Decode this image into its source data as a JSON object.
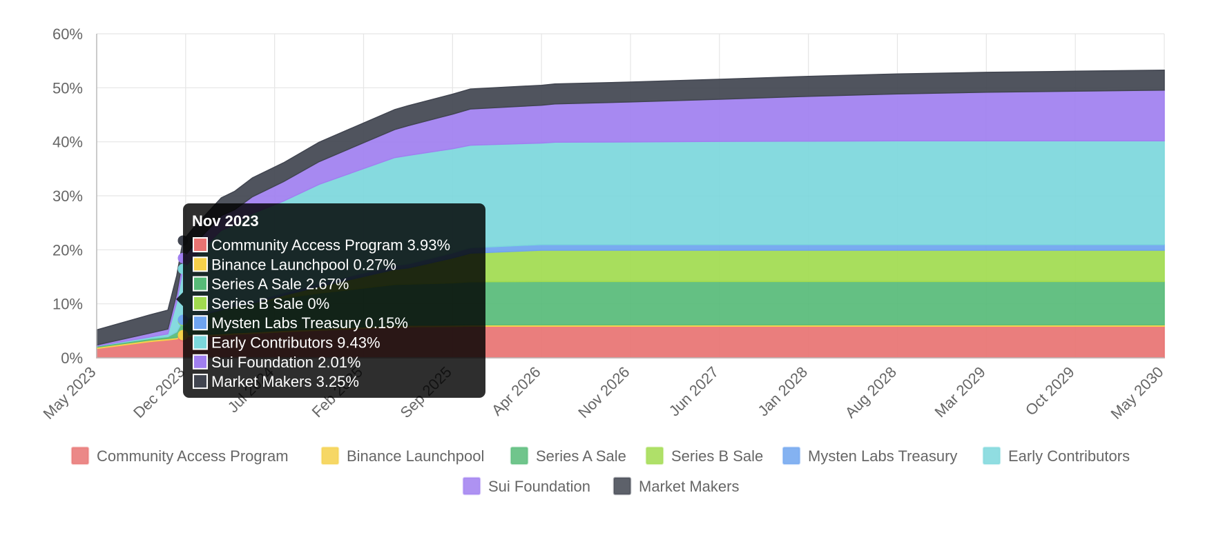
{
  "chart_data": {
    "type": "area",
    "stacked": true,
    "x_labels": [
      "May 2023",
      "Dec 2023",
      "Jul 2024",
      "Feb 2025",
      "Sep 2025",
      "Apr 2026",
      "Nov 2026",
      "Jun 2027",
      "Jan 2028",
      "Aug 2028",
      "Mar 2029",
      "Oct 2029",
      "May 2030"
    ],
    "ylim": [
      0,
      60
    ],
    "yticks": [
      "0%",
      "10%",
      "20%",
      "30%",
      "40%",
      "50%",
      "60%"
    ],
    "ytick_values": [
      0,
      10,
      20,
      30,
      40,
      50,
      60
    ],
    "x_points": [
      0,
      0.6,
      0.8,
      0.9,
      0.97,
      1.1,
      1.4,
      1.55,
      1.75,
      2.1,
      2.5,
      3.35,
      3.5,
      4.0,
      4.2,
      5.0,
      5.15,
      6.0,
      7.0,
      8.0,
      9.0,
      10.0,
      11.0,
      12.0
    ],
    "series": [
      {
        "name": "Community Access Program",
        "color": "#e87372",
        "values": [
          1.7,
          3.0,
          3.3,
          3.5,
          3.93,
          4.0,
          4.2,
          4.35,
          4.5,
          4.8,
          5.1,
          5.7,
          5.75,
          5.8,
          5.85,
          5.85,
          5.85,
          5.85,
          5.85,
          5.85,
          5.85,
          5.85,
          5.85,
          5.85
        ]
      },
      {
        "name": "Binance Launchpool",
        "color": "#f5d04a",
        "values": [
          0.27,
          0.27,
          0.27,
          0.27,
          0.27,
          0.27,
          0.27,
          0.27,
          0.27,
          0.27,
          0.27,
          0.27,
          0.27,
          0.27,
          0.27,
          0.27,
          0.27,
          0.27,
          0.27,
          0.27,
          0.27,
          0.27,
          0.27,
          0.27
        ]
      },
      {
        "name": "Series A Sale",
        "color": "#57bb78",
        "values": [
          0.2,
          0.3,
          0.35,
          1.0,
          2.67,
          3.3,
          4.4,
          5.0,
          5.3,
          6.0,
          6.6,
          7.6,
          7.6,
          7.8,
          7.95,
          8.0,
          8.0,
          8.0,
          8.0,
          8.0,
          8.0,
          8.0,
          8.0,
          8.0
        ]
      },
      {
        "name": "Series B Sale",
        "color": "#a1db4f",
        "values": [
          0,
          0,
          0,
          0,
          0,
          0,
          0,
          0,
          0,
          0.5,
          1.2,
          2.8,
          3.0,
          4.6,
          5.3,
          5.8,
          5.8,
          5.8,
          5.8,
          5.8,
          5.8,
          5.8,
          5.8,
          5.8
        ]
      },
      {
        "name": "Mysten Labs Treasury",
        "color": "#6ea4ef",
        "values": [
          0,
          0,
          0,
          0.05,
          0.15,
          0.2,
          0.25,
          0.3,
          0.35,
          0.45,
          0.55,
          0.7,
          0.75,
          0.95,
          1.0,
          1.05,
          1.05,
          1.05,
          1.05,
          1.05,
          1.05,
          1.05,
          1.05,
          1.05
        ]
      },
      {
        "name": "Early Contributors",
        "color": "#7cd7dc",
        "values": [
          0,
          0.3,
          0.5,
          5.5,
          9.43,
          11.0,
          14.5,
          14.7,
          16.3,
          17.0,
          18.4,
          20.0,
          20.1,
          19.3,
          19.0,
          18.8,
          18.95,
          19.0,
          19.1,
          19.15,
          19.2,
          19.2,
          19.2,
          19.2
        ]
      },
      {
        "name": "Sui Foundation",
        "color": "#a07ff0",
        "values": [
          0.2,
          0.7,
          0.9,
          1.5,
          2.01,
          2.3,
          2.7,
          2.8,
          3.1,
          3.6,
          4.2,
          5.2,
          5.5,
          6.4,
          6.7,
          7.0,
          7.1,
          7.4,
          7.8,
          8.3,
          8.7,
          9.0,
          9.2,
          9.4
        ]
      },
      {
        "name": "Market Makers",
        "color": "#414550",
        "values": [
          2.8,
          3.4,
          3.5,
          3.4,
          3.25,
          3.2,
          3.3,
          3.4,
          3.5,
          3.5,
          3.6,
          3.7,
          3.7,
          3.7,
          3.7,
          3.7,
          3.7,
          3.7,
          3.7,
          3.7,
          3.7,
          3.7,
          3.7,
          3.7
        ]
      }
    ]
  },
  "tooltip": {
    "title": "Nov 2023",
    "items": [
      {
        "label": "Community Access Program 3.93%",
        "color": "#e87372"
      },
      {
        "label": "Binance Launchpool 0.27%",
        "color": "#f5d04a"
      },
      {
        "label": "Series A Sale 2.67%",
        "color": "#57bb78"
      },
      {
        "label": "Series B Sale 0%",
        "color": "#a1db4f"
      },
      {
        "label": "Mysten Labs Treasury 0.15%",
        "color": "#6ea4ef"
      },
      {
        "label": "Early Contributors 9.43%",
        "color": "#7cd7dc"
      },
      {
        "label": "Sui Foundation 2.01%",
        "color": "#a07ff0"
      },
      {
        "label": "Market Makers 3.25%",
        "color": "#414550"
      }
    ]
  },
  "hover_x": 0.97
}
